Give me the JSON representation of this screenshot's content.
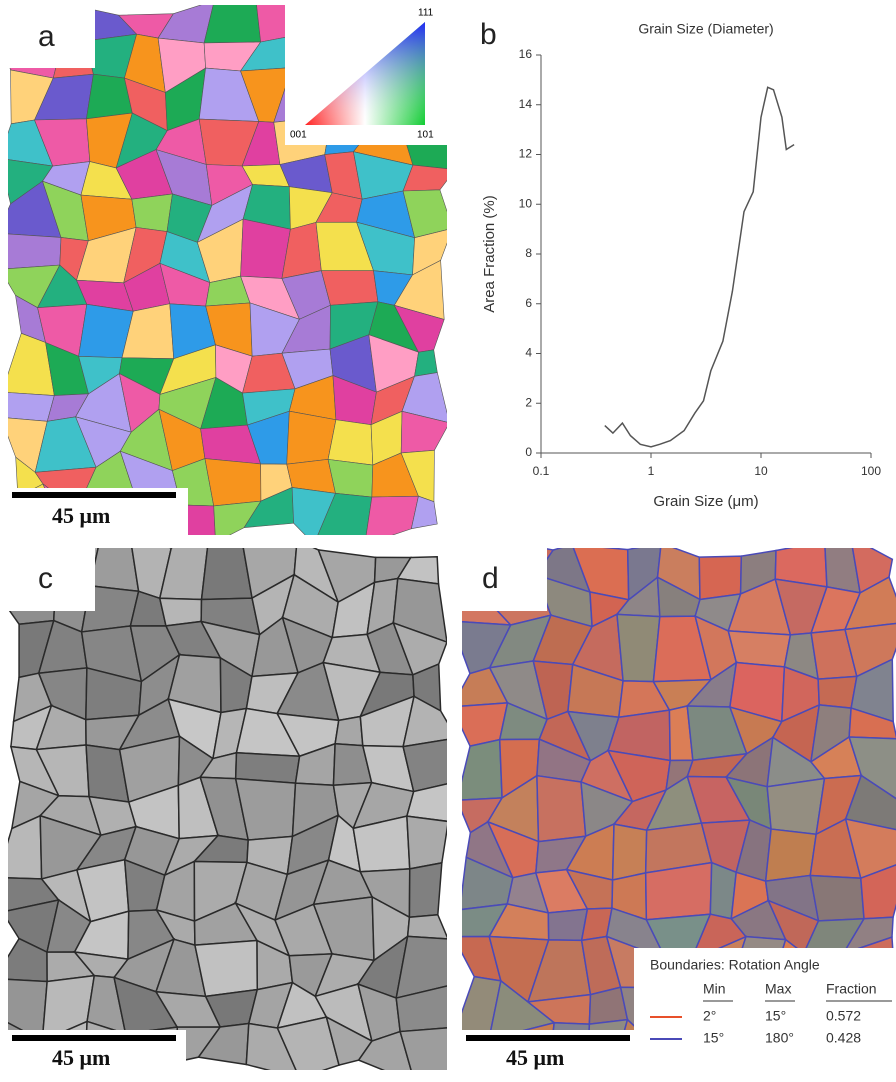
{
  "panel_a": {
    "label": "a",
    "ipf": {
      "top": "111",
      "left": "001",
      "right": "101"
    },
    "scale_bar": "45 μm"
  },
  "chart_data": {
    "type": "line",
    "label": "b",
    "title": "Grain Size (Diameter)",
    "x_label": "Grain Size (μm)",
    "y_label": "Area Fraction (%)",
    "x": [
      0.38,
      0.45,
      0.55,
      0.65,
      0.8,
      1.0,
      1.2,
      1.5,
      2,
      2.5,
      3,
      3.5,
      4.5,
      5.5,
      7,
      8.5,
      10,
      11.5,
      13,
      15.5,
      17,
      20
    ],
    "values": [
      1.1,
      0.8,
      1.2,
      0.7,
      0.35,
      0.25,
      0.35,
      0.5,
      0.9,
      1.6,
      2.1,
      3.3,
      4.5,
      6.5,
      9.7,
      10.5,
      13.5,
      14.7,
      14.6,
      13.5,
      12.2,
      12.4
    ],
    "color": "#555555",
    "xscale": "log",
    "xlim": [
      0.1,
      100
    ],
    "xticks": [
      0.1,
      1,
      10,
      100
    ],
    "ylim": [
      0,
      16
    ],
    "yticks": [
      0,
      2,
      4,
      6,
      8,
      10,
      12,
      14,
      16
    ]
  },
  "panel_c": {
    "label": "c",
    "scale_bar": "45 μm"
  },
  "panel_d": {
    "label": "d",
    "scale_bar": "45 μm",
    "legend": {
      "title": "Boundaries: Rotation Angle",
      "header": [
        "Min",
        "Max",
        "Fraction"
      ],
      "rows": [
        {
          "color": "#e8502a",
          "cells": [
            "2°",
            "15°",
            "0.572"
          ]
        },
        {
          "color": "#4a4ab8",
          "cells": [
            "15°",
            "180°",
            "0.428"
          ]
        }
      ]
    }
  }
}
